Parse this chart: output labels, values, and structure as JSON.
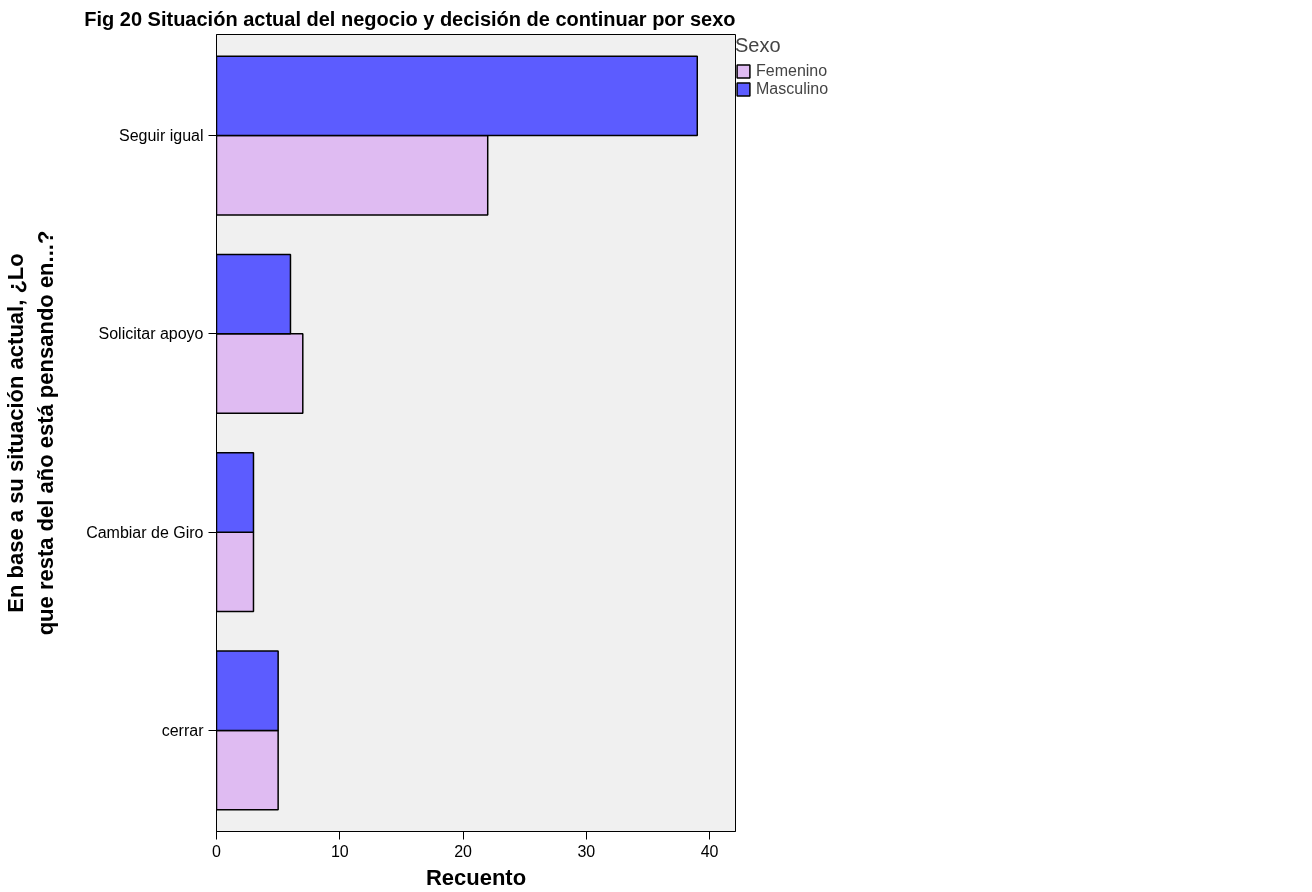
{
  "chart_data": {
    "type": "bar",
    "orientation": "horizontal",
    "title": "Fig 20 Situación actual del negocio y decisión de continuar por sexo",
    "xlabel": "Recuento",
    "ylabel": "En base a su situación actual, ¿Lo que resta del año está pensando en...?",
    "legend_title": "Sexo",
    "legend": "top right",
    "grid": false,
    "categories": [
      "Seguir igual",
      "Solicitar apoyo",
      "Cambiar de Giro",
      "cerrar"
    ],
    "series": [
      {
        "name": "Femenino",
        "color": "#dfbbf2",
        "values": [
          22,
          7,
          3,
          5
        ]
      },
      {
        "name": "Masculino",
        "color": "#5c5cff",
        "values": [
          39,
          6,
          3,
          5
        ]
      }
    ],
    "xlim": [
      0,
      42.1
    ],
    "xticks": [
      0,
      10,
      20,
      30,
      40
    ]
  }
}
